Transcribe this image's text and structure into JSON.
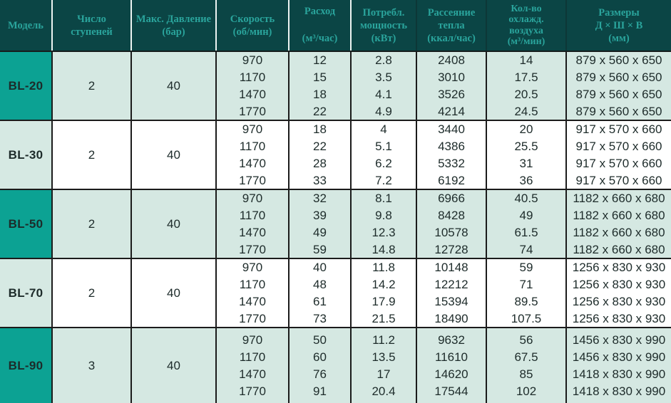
{
  "colors": {
    "header_bg": "#0b4545",
    "header_text": "#2aa49c",
    "model_cell_teal": "#0ca293",
    "row_mint": "#d5e8e2",
    "row_white": "#ffffff",
    "body_text": "#1d2b2a",
    "grid_line": "#1b1b1b"
  },
  "table": {
    "headers": [
      [
        "Модель"
      ],
      [
        "Число",
        "ступеней"
      ],
      [
        "Макс. Давление",
        "(бар)"
      ],
      [
        "Скорость",
        "(об/мин)"
      ],
      [
        "Расход",
        "",
        "(м³/час)"
      ],
      [
        "Потребл.",
        "мощность",
        "(кВт)"
      ],
      [
        "Рассеяние",
        "тепла",
        "(ккал/час)"
      ],
      [
        "Кол-во",
        "охлажд.",
        "воздуха",
        "(м³/мин)"
      ],
      [
        "Размеры",
        "Д × Ш × В",
        "(мм)"
      ]
    ],
    "rows": [
      {
        "model": "BL-20",
        "stages": "2",
        "pressure": "40",
        "speed": [
          "970",
          "1170",
          "1470",
          "1770"
        ],
        "flow": [
          "12",
          "15",
          "18",
          "22"
        ],
        "power": [
          "2.8",
          "3.5",
          "4.1",
          "4.9"
        ],
        "heat": [
          "2408",
          "3010",
          "3526",
          "4214"
        ],
        "air": [
          "14",
          "17.5",
          "20.5",
          "24.5"
        ],
        "dims": [
          "879 x 560 x 650",
          "879 x 560 x 650",
          "879 x 560 x 650",
          "879 x 560 x 650"
        ]
      },
      {
        "model": "BL-30",
        "stages": "2",
        "pressure": "40",
        "speed": [
          "970",
          "1170",
          "1470",
          "1770"
        ],
        "flow": [
          "18",
          "22",
          "28",
          "33"
        ],
        "power": [
          "4",
          "5.1",
          "6.2",
          "7.2"
        ],
        "heat": [
          "3440",
          "4386",
          "5332",
          "6192"
        ],
        "air": [
          "20",
          "25.5",
          "31",
          "36"
        ],
        "dims": [
          "917 x 570 x 660",
          "917 x 570 x 660",
          "917 x 570 x 660",
          "917 x 570 x 660"
        ]
      },
      {
        "model": "BL-50",
        "stages": "2",
        "pressure": "40",
        "speed": [
          "970",
          "1170",
          "1470",
          "1770"
        ],
        "flow": [
          "32",
          "39",
          "49",
          "59"
        ],
        "power": [
          "8.1",
          "9.8",
          "12.3",
          "14.8"
        ],
        "heat": [
          "6966",
          "8428",
          "10578",
          "12728"
        ],
        "air": [
          "40.5",
          "49",
          "61.5",
          "74"
        ],
        "dims": [
          "1182 x 660 x 680",
          "1182 x 660 x 680",
          "1182 x 660 x 680",
          "1182 x 660 x 680"
        ]
      },
      {
        "model": "BL-70",
        "stages": "2",
        "pressure": "40",
        "speed": [
          "970",
          "1170",
          "1470",
          "1770"
        ],
        "flow": [
          "40",
          "48",
          "61",
          "73"
        ],
        "power": [
          "11.8",
          "14.2",
          "17.9",
          "21.5"
        ],
        "heat": [
          "10148",
          "12212",
          "15394",
          "18490"
        ],
        "air": [
          "59",
          "71",
          "89.5",
          "107.5"
        ],
        "dims": [
          "1256 x 830 x 930",
          "1256 x 830 x 930",
          "1256 x 830 x 930",
          "1256 x 830 x 930"
        ]
      },
      {
        "model": "BL-90",
        "stages": "3",
        "pressure": "40",
        "speed": [
          "970",
          "1170",
          "1470",
          "1770"
        ],
        "flow": [
          "50",
          "60",
          "76",
          "91"
        ],
        "power": [
          "11.2",
          "13.5",
          "17",
          "20.4"
        ],
        "heat": [
          "9632",
          "11610",
          "14620",
          "17544"
        ],
        "air": [
          "56",
          "67.5",
          "85",
          "102"
        ],
        "dims": [
          "1456 x 830 x 990",
          "1456 x 830 x 990",
          "1418 x 830 x 990",
          "1418 x 830 x 990"
        ]
      }
    ]
  }
}
